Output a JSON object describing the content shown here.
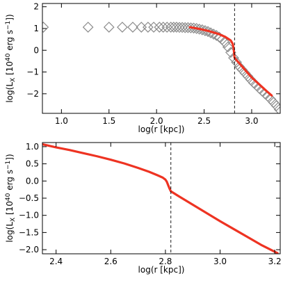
{
  "chart_data": [
    {
      "type": "scatter",
      "xlabel": "log(r [kpc])",
      "ylabel_base": "log(L",
      "ylabel_sub": "X",
      "ylabel_mid": " [10",
      "ylabel_sup1": "40",
      "ylabel_mid2": " erg s",
      "ylabel_sup2": "−1",
      "ylabel_end": "])",
      "xlim": [
        0.8,
        3.3
      ],
      "ylim": [
        -2.9,
        2.15
      ],
      "xticks": [
        1.0,
        1.5,
        2.0,
        2.5,
        3.0
      ],
      "xtick_labels": [
        "1.0",
        "1.5",
        "2.0",
        "2.5",
        "3.0"
      ],
      "yticks": [
        -2,
        -1,
        0,
        1,
        2
      ],
      "ytick_labels": [
        "−2",
        "−1",
        "0",
        "1",
        "2"
      ],
      "vline_x": 2.82,
      "series": [
        {
          "kind": "markers",
          "marker": "diamond",
          "color": "#8c8c8c",
          "x": [
            0.81,
            1.28,
            1.5,
            1.64,
            1.75,
            1.84,
            1.91,
            1.97,
            2.03,
            2.07,
            2.11,
            2.15,
            2.18,
            2.21,
            2.24,
            2.27,
            2.3,
            2.33,
            2.36,
            2.39,
            2.42,
            2.45,
            2.48,
            2.51,
            2.54,
            2.57,
            2.6,
            2.63,
            2.66,
            2.69,
            2.72,
            2.75,
            2.78,
            2.81,
            2.84,
            2.87,
            2.9,
            2.93,
            2.96,
            2.99,
            3.02,
            3.05,
            3.08,
            3.11,
            3.14,
            3.17,
            3.2,
            3.23,
            3.26,
            3.29
          ],
          "y": [
            1.06,
            1.06,
            1.06,
            1.06,
            1.06,
            1.06,
            1.06,
            1.06,
            1.06,
            1.06,
            1.06,
            1.06,
            1.06,
            1.06,
            1.05,
            1.05,
            1.04,
            1.04,
            1.03,
            1.02,
            1.0,
            0.97,
            0.94,
            0.9,
            0.86,
            0.8,
            0.74,
            0.68,
            0.6,
            0.5,
            0.35,
            0.15,
            -0.1,
            -0.35,
            -0.55,
            -0.75,
            -0.9,
            -1.05,
            -1.2,
            -1.35,
            -1.5,
            -1.62,
            -1.75,
            -1.88,
            -2.0,
            -2.12,
            -2.25,
            -2.4,
            -2.55,
            -2.72
          ]
        },
        {
          "kind": "line",
          "color": "#ee3322",
          "x": [
            2.35,
            2.45,
            2.55,
            2.65,
            2.72,
            2.78,
            2.8,
            2.81,
            2.82,
            2.85,
            2.9,
            2.95,
            3.0,
            3.05,
            3.1,
            3.15,
            3.21
          ],
          "y": [
            1.06,
            0.98,
            0.88,
            0.75,
            0.62,
            0.45,
            0.3,
            0.1,
            -0.35,
            -0.5,
            -0.75,
            -1.0,
            -1.25,
            -1.45,
            -1.65,
            -1.85,
            -2.08
          ]
        }
      ]
    },
    {
      "type": "line",
      "xlabel": "log(r [kpc])",
      "ylabel_base": "log(L",
      "ylabel_sub": "X",
      "ylabel_mid": " [10",
      "ylabel_sup1": "40",
      "ylabel_mid2": " erg s",
      "ylabel_sup2": "−1",
      "ylabel_end": "])",
      "xlim": [
        2.35,
        3.22
      ],
      "ylim": [
        -2.12,
        1.12
      ],
      "xticks": [
        2.4,
        2.6,
        2.8,
        3.0,
        3.2
      ],
      "xtick_labels": [
        "2.4",
        "2.6",
        "2.8",
        "3.0",
        "3.2"
      ],
      "yticks": [
        -2.0,
        -1.5,
        -1.0,
        -0.5,
        0.0,
        0.5,
        1.0
      ],
      "ytick_labels": [
        "−2.0",
        "−1.5",
        "−1.0",
        "−0.5",
        "0.0",
        "0.5",
        "1.0"
      ],
      "vline_x": 2.82,
      "series": [
        {
          "kind": "line",
          "color": "#ee3322",
          "x": [
            2.35,
            2.4,
            2.45,
            2.5,
            2.55,
            2.6,
            2.65,
            2.7,
            2.74,
            2.77,
            2.79,
            2.8,
            2.805,
            2.81,
            2.815,
            2.82,
            2.85,
            2.9,
            2.95,
            3.0,
            3.05,
            3.1,
            3.15,
            3.21
          ],
          "y": [
            1.07,
            0.98,
            0.9,
            0.81,
            0.72,
            0.62,
            0.51,
            0.38,
            0.27,
            0.17,
            0.1,
            0.04,
            -0.02,
            -0.12,
            -0.22,
            -0.3,
            -0.45,
            -0.69,
            -0.93,
            -1.17,
            -1.4,
            -1.63,
            -1.86,
            -2.1
          ]
        }
      ]
    }
  ]
}
